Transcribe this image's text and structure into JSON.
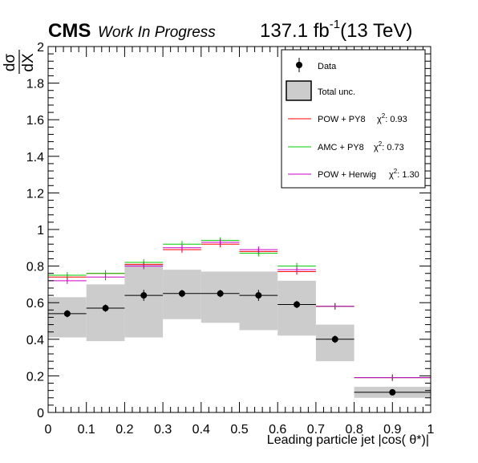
{
  "header": {
    "experiment": "CMS",
    "status": "Work In Progress",
    "lumi_value": "137.1 fb",
    "lumi_exponent": "-1",
    "energy": "(13 TeV)"
  },
  "axes": {
    "ylabel_num": "dσ",
    "ylabel_den": "dX",
    "xlabel": "Leading particle  jet |cos(  θ*)|"
  },
  "colors": {
    "data": "#000000",
    "band": "#cccccc",
    "pow_py8": "#ff0000",
    "amc_py8": "#00cc00",
    "pow_herwig": "#cc00cc"
  },
  "legend": [
    {
      "label": "Data",
      "kind": "marker"
    },
    {
      "label": "Total unc.",
      "kind": "box"
    },
    {
      "label": "POW + PY8",
      "chi_label": "χ",
      "chi_sup": "2",
      "chi_value": ": 0.93",
      "kind": "line",
      "color": "#ff0000"
    },
    {
      "label": "AMC + PY8",
      "chi_label": "χ",
      "chi_sup": "2",
      "chi_value": ": 0.73",
      "kind": "line",
      "color": "#00cc00"
    },
    {
      "label": "POW + Herwig",
      "chi_label": "χ",
      "chi_sup": "2",
      "chi_value": ": 1.30",
      "kind": "line",
      "color": "#cc00cc"
    }
  ],
  "chart_data": {
    "type": "bar",
    "xlim": [
      0,
      1
    ],
    "ylim": [
      0,
      2
    ],
    "x_ticks": [
      "0",
      "0.1",
      "0.2",
      "0.3",
      "0.4",
      "0.5",
      "0.6",
      "0.7",
      "0.8",
      "0.9",
      "1"
    ],
    "y_ticks": [
      "0",
      "0.2",
      "0.4",
      "0.6",
      "0.8",
      "1",
      "1.2",
      "1.4",
      "1.6",
      "1.8",
      "2"
    ],
    "bins": [
      [
        0.0,
        0.1
      ],
      [
        0.1,
        0.2
      ],
      [
        0.2,
        0.3
      ],
      [
        0.3,
        0.4
      ],
      [
        0.4,
        0.5
      ],
      [
        0.5,
        0.6
      ],
      [
        0.6,
        0.7
      ],
      [
        0.7,
        0.8
      ],
      [
        0.8,
        1.0
      ]
    ],
    "data": [
      0.54,
      0.57,
      0.64,
      0.65,
      0.65,
      0.64,
      0.59,
      0.4,
      0.11
    ],
    "data_err": [
      0.02,
      0.02,
      0.03,
      0.02,
      0.02,
      0.03,
      0.02,
      0.02,
      0.01
    ],
    "total_unc_low": [
      0.41,
      0.39,
      0.41,
      0.51,
      0.49,
      0.45,
      0.42,
      0.28,
      0.08
    ],
    "total_unc_high": [
      0.63,
      0.7,
      0.81,
      0.78,
      0.77,
      0.77,
      0.72,
      0.48,
      0.14
    ],
    "series": [
      {
        "name": "POW + PY8",
        "values": [
          0.74,
          0.76,
          0.81,
          0.89,
          0.92,
          0.88,
          0.77,
          0.58,
          0.19
        ]
      },
      {
        "name": "AMC + PY8",
        "values": [
          0.75,
          0.76,
          0.82,
          0.92,
          0.94,
          0.87,
          0.8,
          0.58,
          0.19
        ]
      },
      {
        "name": "POW + Herwig",
        "values": [
          0.72,
          0.74,
          0.8,
          0.9,
          0.93,
          0.89,
          0.78,
          0.58,
          0.19
        ]
      }
    ]
  }
}
